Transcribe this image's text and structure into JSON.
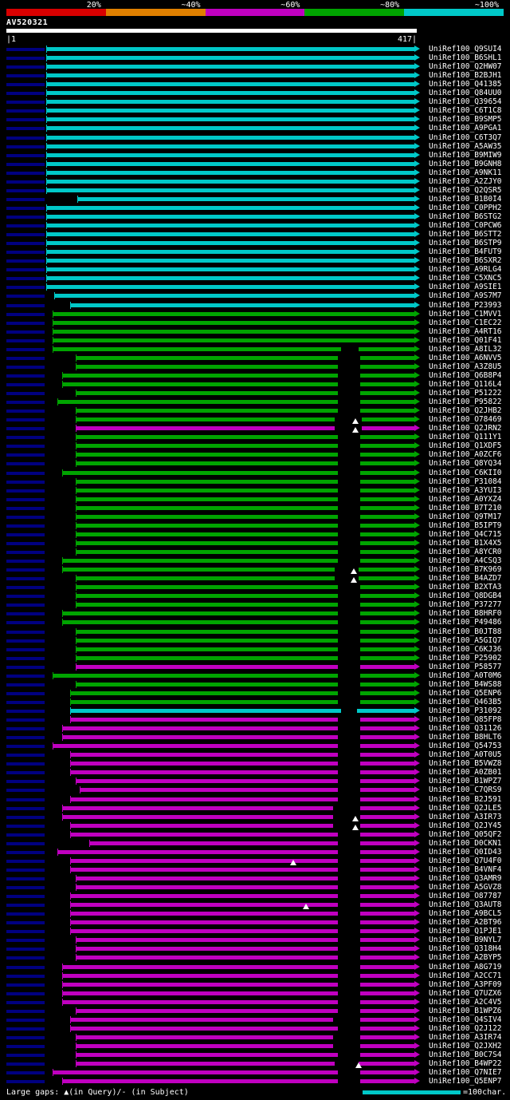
{
  "header": {
    "query_name": "AV520321",
    "scale_start": "|1",
    "scale_end": "417|"
  },
  "identity_legend": {
    "labels": [
      "20%",
      "~40%",
      "~60%",
      "~80%",
      "~100%"
    ],
    "colors": [
      "#d80000",
      "#e08000",
      "#c000c0",
      "#00a400",
      "#00c8c8"
    ]
  },
  "footer": {
    "gaps_note": "Large gaps: ▲(in Query)/- (in Subject)",
    "unit_note": "=100char.",
    "unit_bar_color": "#00c8c8"
  },
  "chart_data": {
    "type": "bar",
    "orientation": "horizontal",
    "title": "AV520321",
    "x_range": [
      1,
      417
    ],
    "query_track_color": "#ffffff",
    "identity_colors": {
      "cyan": "#00c8c8",
      "green": "#00a400",
      "magenta": "#c000c0"
    },
    "identity_meaning": {
      "cyan": "~100%",
      "green": "~80%",
      "magenta": "~60%"
    },
    "hits": [
      {
        "l": "UniRef100_Q9SUI4",
        "c": "cyan",
        "x": 58
      },
      {
        "l": "UniRef100_B6SHL1",
        "c": "cyan",
        "x": 58
      },
      {
        "l": "UniRef100_Q2HW07",
        "c": "cyan",
        "x": 58
      },
      {
        "l": "UniRef100_B2BJH1",
        "c": "cyan",
        "x": 58
      },
      {
        "l": "UniRef100_Q41385",
        "c": "cyan",
        "x": 58
      },
      {
        "l": "UniRef100_Q84UU0",
        "c": "cyan",
        "x": 58
      },
      {
        "l": "UniRef100_Q39654",
        "c": "cyan",
        "x": 58
      },
      {
        "l": "UniRef100_C6T1C8",
        "c": "cyan",
        "x": 58
      },
      {
        "l": "UniRef100_B9SMP5",
        "c": "cyan",
        "x": 58
      },
      {
        "l": "UniRef100_A9PGA1",
        "c": "cyan",
        "x": 58
      },
      {
        "l": "UniRef100_C6T3Q7",
        "c": "cyan",
        "x": 58
      },
      {
        "l": "UniRef100_A5AW35",
        "c": "cyan",
        "x": 58
      },
      {
        "l": "UniRef100_B9MIW9",
        "c": "cyan",
        "x": 58
      },
      {
        "l": "UniRef100_B9GNH8",
        "c": "cyan",
        "x": 58
      },
      {
        "l": "UniRef100_A9NK11",
        "c": "cyan",
        "x": 58
      },
      {
        "l": "UniRef100_A2ZJY0",
        "c": "cyan",
        "x": 58
      },
      {
        "l": "UniRef100_Q2QSR5",
        "c": "cyan",
        "x": 58
      },
      {
        "l": "UniRef100_B1B0I4",
        "c": "cyan",
        "x": 97
      },
      {
        "l": "UniRef100_C0PPH2",
        "c": "cyan",
        "x": 58
      },
      {
        "l": "UniRef100_B6STG2",
        "c": "cyan",
        "x": 58
      },
      {
        "l": "UniRef100_C0PCW6",
        "c": "cyan",
        "x": 58
      },
      {
        "l": "UniRef100_B6STT2",
        "c": "cyan",
        "x": 58
      },
      {
        "l": "UniRef100_B6STP9",
        "c": "cyan",
        "x": 58
      },
      {
        "l": "UniRef100_B4FUT9",
        "c": "cyan",
        "x": 58
      },
      {
        "l": "UniRef100_B6SXR2",
        "c": "cyan",
        "x": 58
      },
      {
        "l": "UniRef100_A9RLG4",
        "c": "cyan",
        "x": 58
      },
      {
        "l": "UniRef100_C5XNC5",
        "c": "cyan",
        "x": 58
      },
      {
        "l": "UniRef100_A9SIE1",
        "c": "cyan",
        "x": 58
      },
      {
        "l": "UniRef100_A9S7M7",
        "c": "cyan",
        "x": 68
      },
      {
        "l": "UniRef100_P23993",
        "c": "cyan",
        "x": 88
      },
      {
        "l": "UniRef100_C1MVV1",
        "c": "green",
        "x": 66
      },
      {
        "l": "UniRef100_C1EC22",
        "c": "green",
        "x": 66
      },
      {
        "l": "UniRef100_A4RT16",
        "c": "green",
        "x": 66
      },
      {
        "l": "UniRef100_Q01F41",
        "c": "green",
        "x": 66
      },
      {
        "l": "UniRef100_A8IL32",
        "c": "green",
        "x": 66,
        "g": [
          428,
          22
        ]
      },
      {
        "l": "UniRef100_A6NVV5",
        "c": "green",
        "x": 95,
        "g": [
          424,
          28
        ]
      },
      {
        "l": "UniRef100_A3Z8U5",
        "c": "green",
        "x": 95,
        "g": [
          424,
          28
        ]
      },
      {
        "l": "UniRef100_Q6B8P4",
        "c": "green",
        "x": 78,
        "g": [
          424,
          28
        ]
      },
      {
        "l": "UniRef100_Q116L4",
        "c": "green",
        "x": 78,
        "g": [
          424,
          28
        ]
      },
      {
        "l": "UniRef100_P51222",
        "c": "green",
        "x": 95,
        "g": [
          424,
          28
        ]
      },
      {
        "l": "UniRef100_P95822",
        "c": "green",
        "x": 72,
        "g": [
          424,
          28
        ]
      },
      {
        "l": "UniRef100_Q2JHB2",
        "c": "green",
        "x": 95,
        "g": [
          424,
          28
        ]
      },
      {
        "l": "UniRef100_O78469",
        "c": "green",
        "x": 95,
        "g": [
          420,
          34
        ],
        "t": 446
      },
      {
        "l": "UniRef100_Q2JRN2",
        "c": "magenta",
        "x": 95,
        "g": [
          420,
          34
        ],
        "t": 446
      },
      {
        "l": "UniRef100_Q111Y1",
        "c": "green",
        "x": 95,
        "g": [
          424,
          28
        ]
      },
      {
        "l": "UniRef100_Q1XDF5",
        "c": "green",
        "x": 95,
        "g": [
          424,
          28
        ]
      },
      {
        "l": "UniRef100_A0ZCF6",
        "c": "green",
        "x": 95,
        "g": [
          424,
          28
        ]
      },
      {
        "l": "UniRef100_Q8YQ34",
        "c": "green",
        "x": 95,
        "g": [
          424,
          28
        ]
      },
      {
        "l": "UniRef100_C6KII0",
        "c": "green",
        "x": 78,
        "g": [
          424,
          28
        ]
      },
      {
        "l": "UniRef100_P31084",
        "c": "green",
        "x": 95,
        "g": [
          424,
          28
        ]
      },
      {
        "l": "UniRef100_A3YUI3",
        "c": "green",
        "x": 95,
        "g": [
          424,
          28
        ]
      },
      {
        "l": "UniRef100_A0YXZ4",
        "c": "green",
        "x": 95,
        "g": [
          424,
          28
        ]
      },
      {
        "l": "UniRef100_B7T210",
        "c": "green",
        "x": 95,
        "g": [
          424,
          28
        ]
      },
      {
        "l": "UniRef100_Q9TM17",
        "c": "green",
        "x": 95,
        "g": [
          424,
          28
        ]
      },
      {
        "l": "UniRef100_B5IPT9",
        "c": "green",
        "x": 95,
        "g": [
          424,
          28
        ]
      },
      {
        "l": "UniRef100_Q4C715",
        "c": "green",
        "x": 95,
        "g": [
          424,
          28
        ]
      },
      {
        "l": "UniRef100_B1X4X5",
        "c": "green",
        "x": 95,
        "g": [
          424,
          28
        ]
      },
      {
        "l": "UniRef100_A8YCR0",
        "c": "green",
        "x": 95,
        "g": [
          424,
          28
        ]
      },
      {
        "l": "UniRef100_A4CSQ3",
        "c": "green",
        "x": 78,
        "g": [
          424,
          28
        ]
      },
      {
        "l": "UniRef100_B7K969",
        "c": "green",
        "x": 78,
        "g": [
          420,
          30
        ],
        "t": 444
      },
      {
        "l": "UniRef100_B4AZD7",
        "c": "green",
        "x": 95,
        "g": [
          420,
          30
        ],
        "t": 444
      },
      {
        "l": "UniRef100_B2XTA3",
        "c": "green",
        "x": 95,
        "g": [
          424,
          28
        ]
      },
      {
        "l": "UniRef100_Q8DGB4",
        "c": "green",
        "x": 95,
        "g": [
          424,
          28
        ]
      },
      {
        "l": "UniRef100_P37277",
        "c": "green",
        "x": 95,
        "g": [
          424,
          28
        ]
      },
      {
        "l": "UniRef100_B8HRF0",
        "c": "green",
        "x": 78,
        "g": [
          424,
          28
        ]
      },
      {
        "l": "UniRef100_P49486",
        "c": "green",
        "x": 78,
        "g": [
          424,
          28
        ]
      },
      {
        "l": "UniRef100_B0JT88",
        "c": "green",
        "x": 95,
        "g": [
          424,
          28
        ]
      },
      {
        "l": "UniRef100_A5GIQ7",
        "c": "green",
        "x": 95,
        "g": [
          424,
          28
        ]
      },
      {
        "l": "UniRef100_C6KJ36",
        "c": "green",
        "x": 95,
        "g": [
          424,
          28
        ]
      },
      {
        "l": "UniRef100_P25902",
        "c": "green",
        "x": 95,
        "g": [
          424,
          28
        ]
      },
      {
        "l": "UniRef100_P58577",
        "c": "magenta",
        "x": 95,
        "g": [
          424,
          28
        ]
      },
      {
        "l": "UniRef100_A0T0M6",
        "c": "green",
        "x": 66,
        "g": [
          424,
          28
        ]
      },
      {
        "l": "UniRef100_B4WS88",
        "c": "green",
        "x": 95,
        "g": [
          424,
          28
        ]
      },
      {
        "l": "UniRef100_Q5ENP6",
        "c": "green",
        "x": 88,
        "g": [
          424,
          28
        ]
      },
      {
        "l": "UniRef100_Q463B5",
        "c": "green",
        "x": 88,
        "g": [
          424,
          28
        ]
      },
      {
        "l": "UniRef100_P31092",
        "c": "cyan",
        "x": 88,
        "g": [
          428,
          20
        ]
      },
      {
        "l": "UniRef100_Q85FP8",
        "c": "magenta",
        "x": 88,
        "g": [
          424,
          28
        ]
      },
      {
        "l": "UniRef100_Q31126",
        "c": "magenta",
        "x": 78,
        "g": [
          424,
          28
        ]
      },
      {
        "l": "UniRef100_B8HLT6",
        "c": "magenta",
        "x": 78,
        "g": [
          424,
          28
        ]
      },
      {
        "l": "UniRef100_Q54753",
        "c": "magenta",
        "x": 66,
        "g": [
          424,
          28
        ]
      },
      {
        "l": "UniRef100_A0T0U5",
        "c": "magenta",
        "x": 88,
        "g": [
          424,
          28
        ]
      },
      {
        "l": "UniRef100_B5VWZ8",
        "c": "magenta",
        "x": 88,
        "g": [
          424,
          28
        ]
      },
      {
        "l": "UniRef100_A0ZB01",
        "c": "magenta",
        "x": 88,
        "g": [
          424,
          28
        ]
      },
      {
        "l": "UniRef100_B1WPZ7",
        "c": "magenta",
        "x": 95,
        "g": [
          424,
          28
        ]
      },
      {
        "l": "UniRef100_C7QRS9",
        "c": "magenta",
        "x": 100,
        "g": [
          424,
          28
        ]
      },
      {
        "l": "UniRef100_B2J591",
        "c": "magenta",
        "x": 88,
        "g": [
          424,
          28
        ]
      },
      {
        "l": "UniRef100_Q2JLE5",
        "c": "magenta",
        "x": 78,
        "g": [
          418,
          34
        ]
      },
      {
        "l": "UniRef100_A3IR73",
        "c": "magenta",
        "x": 78,
        "g": [
          418,
          34
        ],
        "t": 446
      },
      {
        "l": "UniRef100_Q2JY45",
        "c": "magenta",
        "x": 88,
        "g": [
          418,
          34
        ],
        "t": 446
      },
      {
        "l": "UniRef100_Q05QF2",
        "c": "magenta",
        "x": 88,
        "g": [
          424,
          28
        ]
      },
      {
        "l": "UniRef100_D0CKN1",
        "c": "magenta",
        "x": 112,
        "g": [
          424,
          28
        ]
      },
      {
        "l": "UniRef100_Q0ID43",
        "c": "magenta",
        "x": 72,
        "g": [
          424,
          28
        ]
      },
      {
        "l": "UniRef100_Q7U4F0",
        "c": "magenta",
        "x": 88,
        "g": [
          424,
          28
        ],
        "t": 368
      },
      {
        "l": "UniRef100_B4VNF4",
        "c": "magenta",
        "x": 88,
        "g": [
          424,
          28
        ]
      },
      {
        "l": "UniRef100_Q3AMR9",
        "c": "magenta",
        "x": 95,
        "g": [
          424,
          28
        ]
      },
      {
        "l": "UniRef100_A5GVZ8",
        "c": "magenta",
        "x": 95,
        "g": [
          424,
          28
        ]
      },
      {
        "l": "UniRef100_O87787",
        "c": "magenta",
        "x": 88,
        "g": [
          424,
          28
        ]
      },
      {
        "l": "UniRef100_Q3AUT8",
        "c": "magenta",
        "x": 88,
        "g": [
          424,
          28
        ],
        "t": 384
      },
      {
        "l": "UniRef100_A9BCL5",
        "c": "magenta",
        "x": 88,
        "g": [
          424,
          28
        ]
      },
      {
        "l": "UniRef100_A2BT96",
        "c": "magenta",
        "x": 88,
        "g": [
          424,
          28
        ]
      },
      {
        "l": "UniRef100_Q1PJE1",
        "c": "magenta",
        "x": 88,
        "g": [
          424,
          28
        ]
      },
      {
        "l": "UniRef100_B9NYL7",
        "c": "magenta",
        "x": 95,
        "g": [
          424,
          28
        ]
      },
      {
        "l": "UniRef100_Q318H4",
        "c": "magenta",
        "x": 95,
        "g": [
          424,
          28
        ]
      },
      {
        "l": "UniRef100_A2BYP5",
        "c": "magenta",
        "x": 95,
        "g": [
          424,
          28
        ]
      },
      {
        "l": "UniRef100_A8G719",
        "c": "magenta",
        "x": 78,
        "g": [
          424,
          28
        ]
      },
      {
        "l": "UniRef100_A2CC71",
        "c": "magenta",
        "x": 78,
        "g": [
          424,
          28
        ]
      },
      {
        "l": "UniRef100_A3PF09",
        "c": "magenta",
        "x": 78,
        "g": [
          424,
          28
        ]
      },
      {
        "l": "UniRef100_Q7UZX6",
        "c": "magenta",
        "x": 78,
        "g": [
          424,
          28
        ]
      },
      {
        "l": "UniRef100_A2C4V5",
        "c": "magenta",
        "x": 78,
        "g": [
          424,
          28
        ]
      },
      {
        "l": "UniRef100_B1WPZ6",
        "c": "magenta",
        "x": 95,
        "g": [
          424,
          28
        ]
      },
      {
        "l": "UniRef100_Q4SIV4",
        "c": "magenta",
        "x": 88,
        "g": [
          418,
          34
        ]
      },
      {
        "l": "UniRef100_Q2J122",
        "c": "magenta",
        "x": 88,
        "g": [
          424,
          28
        ]
      },
      {
        "l": "UniRef100_A3IR74",
        "c": "magenta",
        "x": 95,
        "g": [
          418,
          34
        ]
      },
      {
        "l": "UniRef100_Q2JXH2",
        "c": "magenta",
        "x": 95,
        "g": [
          418,
          34
        ]
      },
      {
        "l": "UniRef100_B0C7S4",
        "c": "magenta",
        "x": 95,
        "g": [
          424,
          28
        ]
      },
      {
        "l": "UniRef100_B4WP22",
        "c": "magenta",
        "x": 95,
        "g": [
          420,
          30
        ],
        "t": 450
      },
      {
        "l": "UniRef100_Q7NIE7",
        "c": "magenta",
        "x": 66,
        "g": [
          424,
          28
        ]
      },
      {
        "l": "UniRef100_Q5ENP7",
        "c": "magenta",
        "x": 78,
        "g": [
          424,
          28
        ]
      }
    ]
  }
}
